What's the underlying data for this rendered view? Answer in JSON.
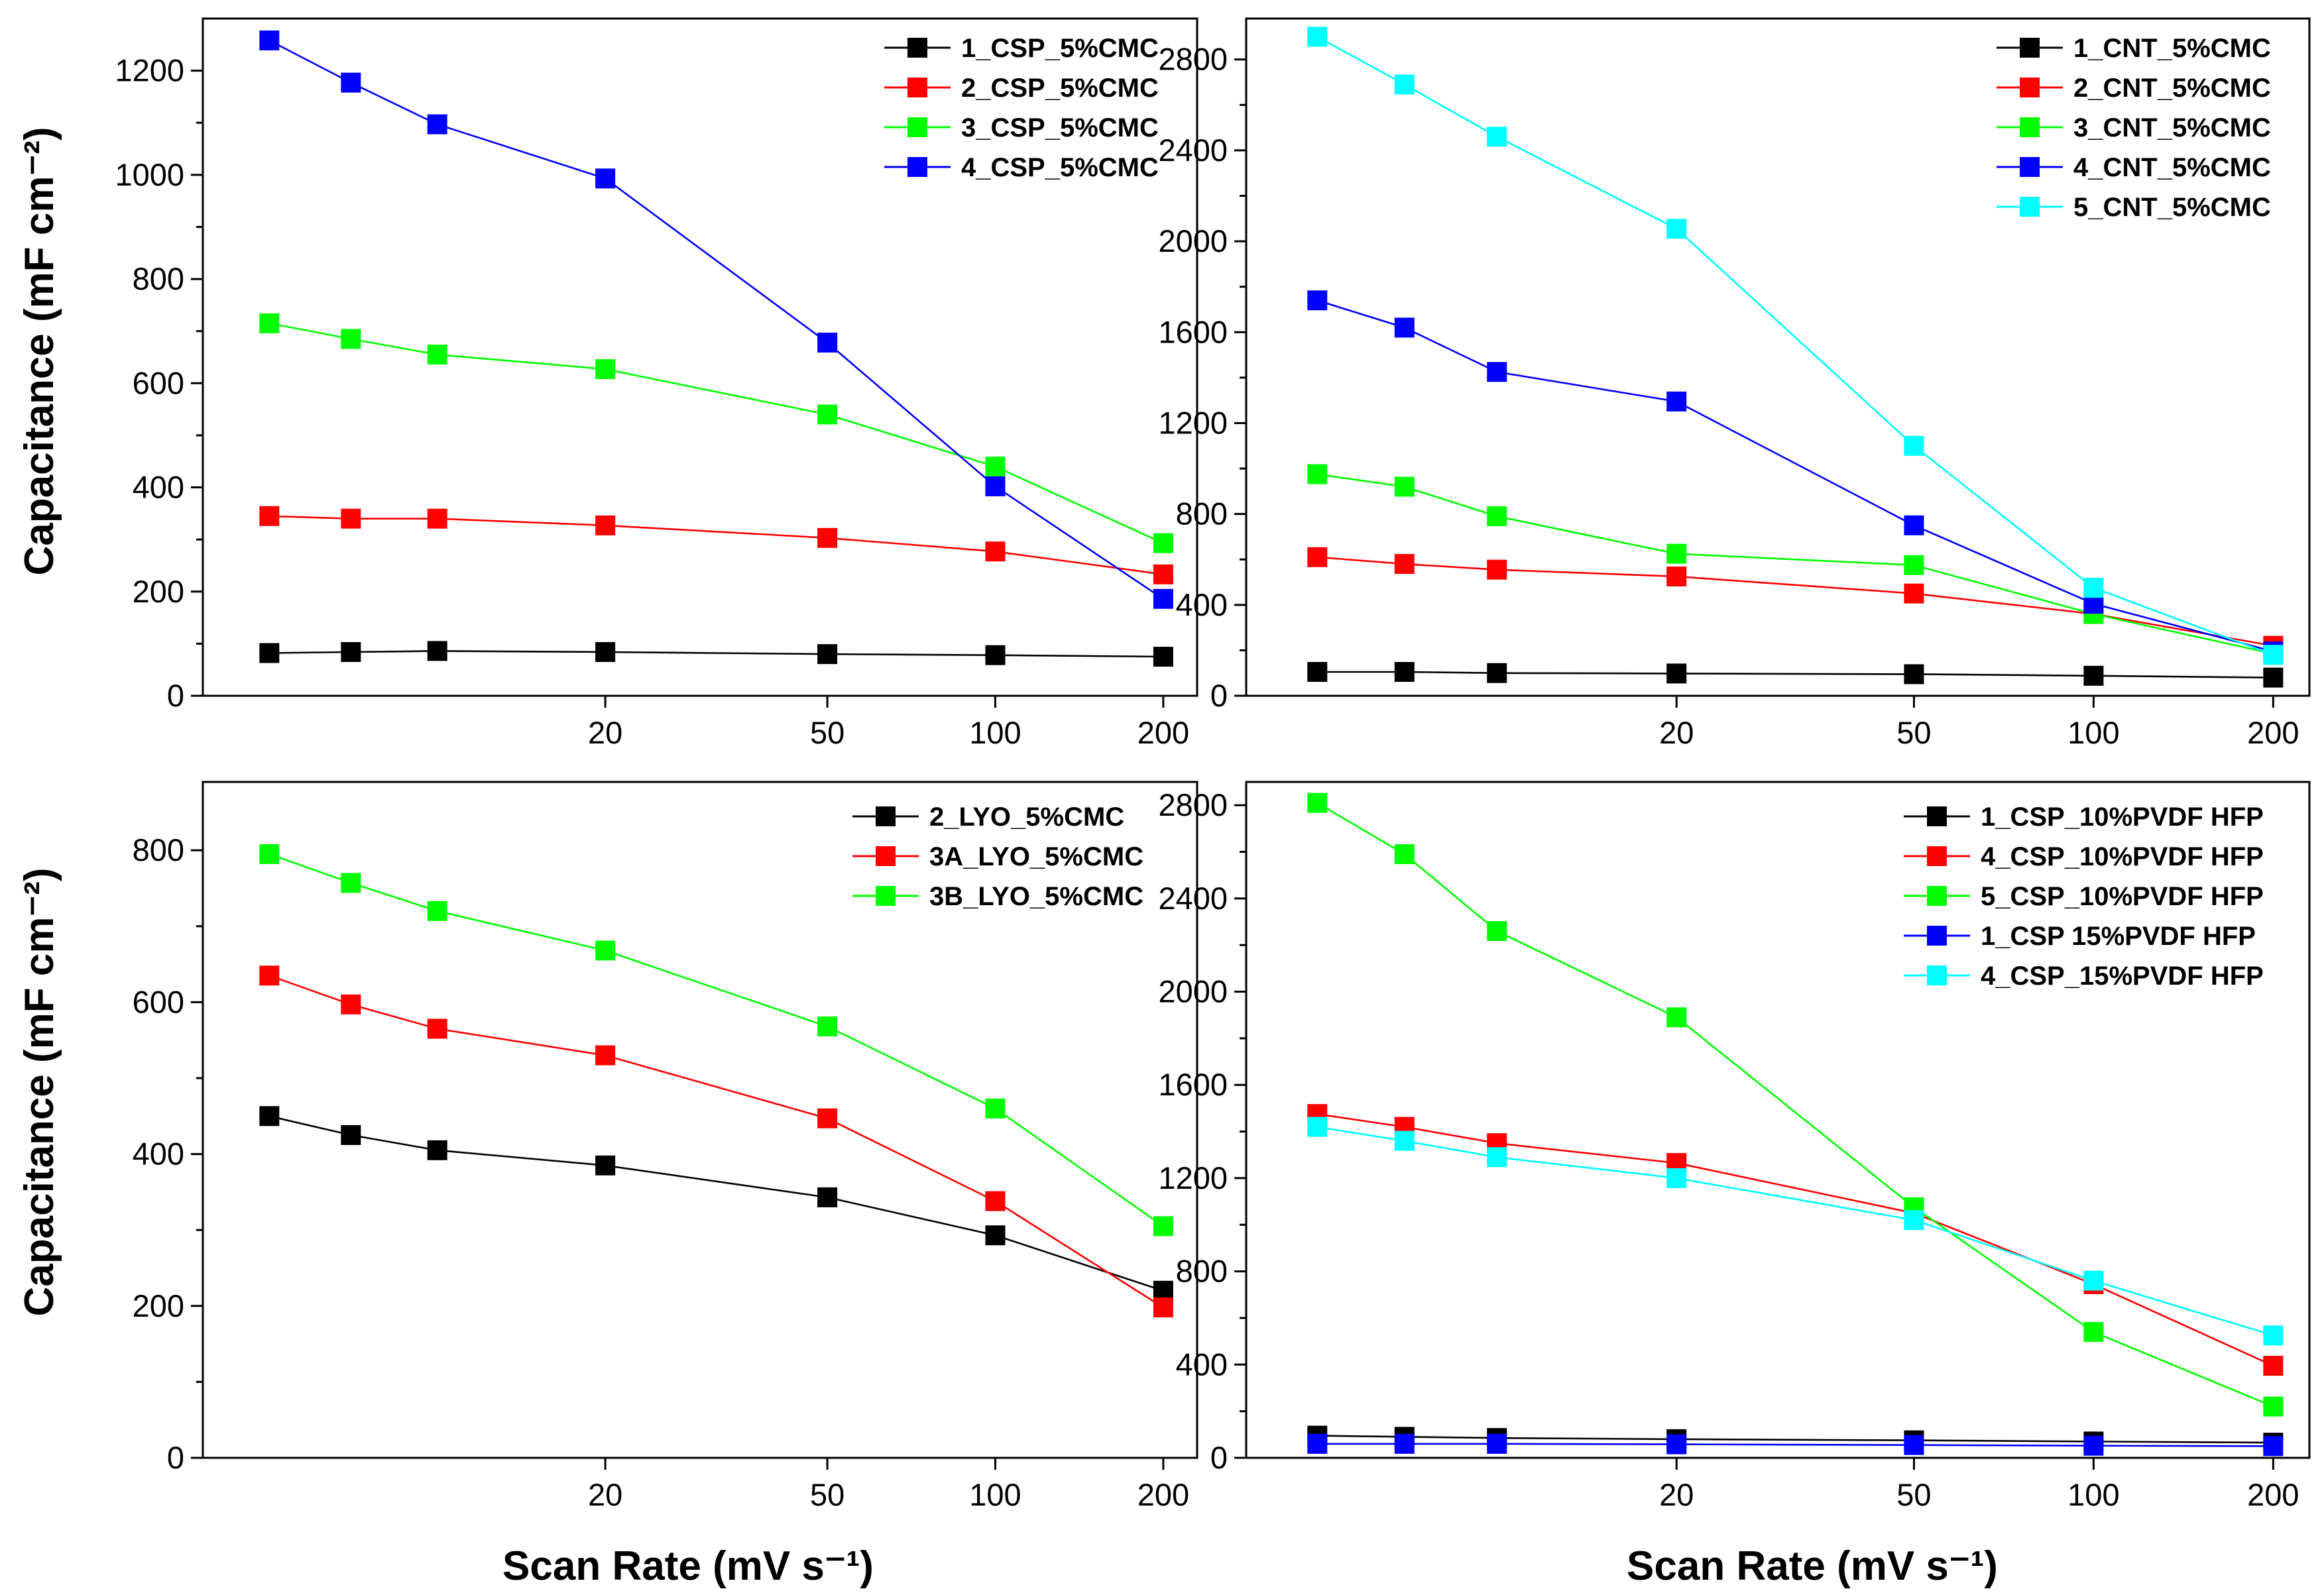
{
  "figure": {
    "ylabel": "Capacitance (mF cm⁻²)",
    "xlabel": "Scan Rate (mV s⁻¹)"
  },
  "chart_data": [
    {
      "type": "line",
      "panel": "top-left",
      "x": [
        5,
        7,
        10,
        20,
        50,
        100,
        200
      ],
      "xticks": [
        20,
        50,
        100,
        200
      ],
      "ylim": [
        0,
        1300
      ],
      "yticks": [
        0,
        200,
        400,
        600,
        800,
        1000,
        1200
      ],
      "ylabel": "Capacitance (mF cm⁻²)",
      "xlabel": "",
      "legend": "top-right",
      "series": [
        {
          "name": "1_CSP_5%CMC",
          "color": "#000000",
          "values": [
            82,
            84,
            86,
            84,
            80,
            78,
            75
          ]
        },
        {
          "name": "2_CSP_5%CMC",
          "color": "#ff0000",
          "values": [
            345,
            340,
            340,
            327,
            303,
            277,
            233
          ]
        },
        {
          "name": "3_CSP_5%CMC",
          "color": "#00ff00",
          "values": [
            715,
            685,
            655,
            627,
            540,
            440,
            293
          ]
        },
        {
          "name": "4_CSP_5%CMC",
          "color": "#0000ff",
          "values": [
            1258,
            1177,
            1097,
            993,
            678,
            402,
            186
          ]
        }
      ]
    },
    {
      "type": "line",
      "panel": "top-right",
      "x": [
        5,
        7,
        10,
        20,
        50,
        100,
        200
      ],
      "xticks": [
        20,
        50,
        100,
        200
      ],
      "ylim": [
        0,
        2980
      ],
      "yticks": [
        0,
        400,
        800,
        1200,
        1600,
        2000,
        2400,
        2800
      ],
      "ylabel": "",
      "xlabel": "",
      "legend": "top-right",
      "series": [
        {
          "name": "1_CNT_5%CMC",
          "color": "#000000",
          "values": [
            105,
            105,
            100,
            98,
            95,
            88,
            80
          ]
        },
        {
          "name": "2_CNT_5%CMC",
          "color": "#ff0000",
          "values": [
            610,
            580,
            555,
            525,
            450,
            360,
            220
          ]
        },
        {
          "name": "3_CNT_5%CMC",
          "color": "#00ff00",
          "values": [
            975,
            920,
            790,
            625,
            575,
            360,
            185
          ]
        },
        {
          "name": "4_CNT_5%CMC",
          "color": "#0000ff",
          "values": [
            1740,
            1620,
            1425,
            1295,
            750,
            405,
            195
          ]
        },
        {
          "name": "5_CNT_5%CMC",
          "color": "#00ffff",
          "values": [
            2900,
            2690,
            2460,
            2055,
            1100,
            475,
            180
          ]
        }
      ]
    },
    {
      "type": "line",
      "panel": "bottom-left",
      "x": [
        5,
        7,
        10,
        20,
        50,
        100,
        200
      ],
      "xticks": [
        20,
        50,
        100,
        200
      ],
      "ylim": [
        0,
        890
      ],
      "yticks": [
        0,
        200,
        400,
        600,
        800
      ],
      "ylabel": "Capacitance (mF cm⁻²)",
      "xlabel": "Scan Rate (mV s⁻¹)",
      "legend": "top-right",
      "series": [
        {
          "name": "2_LYO_5%CMC",
          "color": "#000000",
          "values": [
            450,
            425,
            405,
            385,
            343,
            293,
            220
          ]
        },
        {
          "name": "3A_LYO_5%CMC",
          "color": "#ff0000",
          "values": [
            635,
            597,
            565,
            530,
            447,
            338,
            198
          ]
        },
        {
          "name": "3B_LYO_5%CMC",
          "color": "#00ff00",
          "values": [
            795,
            757,
            720,
            668,
            568,
            460,
            305
          ]
        }
      ]
    },
    {
      "type": "line",
      "panel": "bottom-right",
      "x": [
        5,
        7,
        10,
        20,
        50,
        100,
        200
      ],
      "xticks": [
        20,
        50,
        100,
        200
      ],
      "ylim": [
        0,
        2900
      ],
      "yticks": [
        0,
        400,
        800,
        1200,
        1600,
        2000,
        2400,
        2800
      ],
      "ylabel": "",
      "xlabel": "Scan Rate (mV s⁻¹)",
      "legend": "top-right",
      "series": [
        {
          "name": "1_CSP_10%PVDF HFP",
          "color": "#000000",
          "values": [
            95,
            90,
            85,
            80,
            75,
            70,
            65
          ]
        },
        {
          "name": "4_CSP_10%PVDF HFP",
          "color": "#ff0000",
          "values": [
            1475,
            1420,
            1350,
            1265,
            1050,
            745,
            395
          ]
        },
        {
          "name": "5_CSP_10%PVDF HFP",
          "color": "#00ff00",
          "values": [
            2810,
            2590,
            2260,
            1890,
            1075,
            540,
            220
          ]
        },
        {
          "name": "1_CSP 15%PVDF HFP",
          "color": "#0000ff",
          "values": [
            60,
            60,
            60,
            58,
            55,
            52,
            50
          ]
        },
        {
          "name": "4_CSP_15%PVDF HFP",
          "color": "#00ffff",
          "values": [
            1420,
            1360,
            1290,
            1200,
            1020,
            760,
            525
          ]
        }
      ]
    }
  ]
}
